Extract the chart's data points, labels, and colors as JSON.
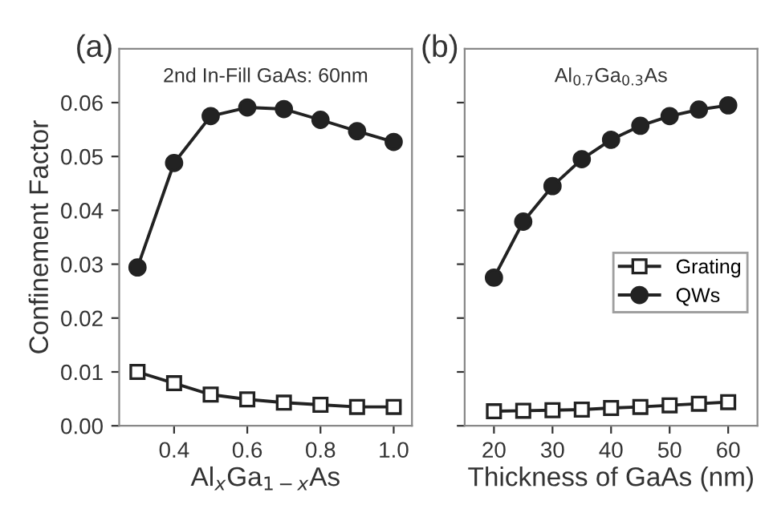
{
  "chart_data": [
    {
      "type": "line",
      "title": "(a)",
      "annotations": [
        "2nd In-Fill GaAs: 60nm"
      ],
      "xlabel": "Al$_{x}$Ga$_{1−x}$As",
      "ylabel": "Confinement Factor",
      "x": [
        0.3,
        0.4,
        0.5,
        0.6,
        0.7,
        0.8,
        0.9,
        1.0
      ],
      "series": [
        {
          "color": "#222222",
          "marker": "square",
          "values": [
            0.01,
            0.0079,
            0.0058,
            0.0049,
            0.0043,
            0.0039,
            0.0035,
            0.0035
          ]
        },
        {
          "color": "#222222",
          "marker": "circle",
          "values": [
            0.0294,
            0.0488,
            0.0575,
            0.0591,
            0.0588,
            0.0568,
            0.0547,
            0.0527
          ]
        }
      ],
      "xlim": [
        0.25,
        1.05
      ],
      "xticks": [
        0.4,
        0.6,
        0.8,
        {
          "value": 1.0,
          "label": "1.0"
        }
      ],
      "ylim": [
        0,
        0.07
      ],
      "yticks": [
        {
          "value": 0,
          "label": "0.00"
        },
        0.01,
        0.02,
        0.03,
        0.04,
        0.05,
        0.06
      ],
      "grid": false,
      "legend": false
    },
    {
      "type": "line",
      "title": "(b)",
      "annotations": [
        "Al$_{0.7}$Ga$_{0.3}$As"
      ],
      "xlabel": "Thickness of GaAs (nm)",
      "x": [
        20,
        25,
        30,
        35,
        40,
        45,
        50,
        55,
        60
      ],
      "series": [
        {
          "name": "Grating",
          "color": "#222222",
          "marker": "square",
          "values": [
            0.0027,
            0.0028,
            0.0029,
            0.003,
            0.0033,
            0.0035,
            0.0038,
            0.0041,
            0.0044
          ]
        },
        {
          "name": "QWs",
          "color": "#222222",
          "marker": "circle",
          "values": [
            0.0275,
            0.0379,
            0.0445,
            0.0495,
            0.0531,
            0.0557,
            0.0575,
            0.0587,
            0.0595
          ]
        }
      ],
      "xlim": [
        15,
        65
      ],
      "xticks": [
        20,
        30,
        40,
        50,
        60
      ],
      "ylim": [
        0,
        0.07
      ],
      "yticks": [
        0.0,
        0.01,
        0.02,
        0.03,
        0.04,
        0.05,
        0.06
      ],
      "tick_labels": "x",
      "grid": false,
      "legend": "center right"
    }
  ]
}
